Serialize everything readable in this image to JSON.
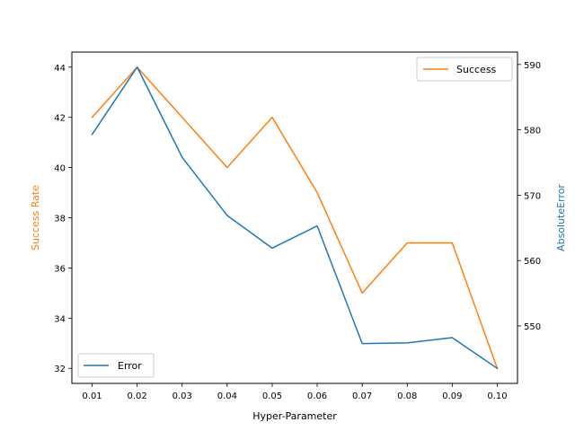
{
  "chart_data": {
    "type": "line",
    "title": "",
    "xlabel": "Hyper-Parameter",
    "ylabel_left": "Success Rate",
    "ylabel_right": "AbsoluteError",
    "x": [
      0.01,
      0.02,
      0.03,
      0.04,
      0.05,
      0.06,
      0.07,
      0.08,
      0.09,
      0.1
    ],
    "x_tick_labels": [
      "0.01",
      "0.02",
      "0.03",
      "0.04",
      "0.05",
      "0.06",
      "0.07",
      "0.08",
      "0.09",
      "0.10"
    ],
    "xlim": [
      0.0055,
      0.1045
    ],
    "series": [
      {
        "name": "Success",
        "axis": "left",
        "color": "#ff7f0e",
        "values": [
          42,
          44,
          42,
          40,
          42,
          39,
          35,
          37,
          37,
          32
        ]
      },
      {
        "name": "Error",
        "axis": "right",
        "color": "#1f77b4",
        "values": [
          579.3,
          589.6,
          575.8,
          566.9,
          561.9,
          565.3,
          547.3,
          547.4,
          548.2,
          543.5
        ]
      }
    ],
    "ylim_left": [
      31.4,
      44.6
    ],
    "ylim_right": [
      541.2,
      591.9
    ],
    "yticks_left": [
      32,
      34,
      36,
      38,
      40,
      42,
      44
    ],
    "yticks_right": [
      550,
      560,
      570,
      580,
      590
    ],
    "ylabel_left_color": "#ff7f0e",
    "ylabel_right_color": "#1f77b4",
    "legend_success_placement": "top-right",
    "legend_error_placement": "bottom-left",
    "grid": false
  }
}
